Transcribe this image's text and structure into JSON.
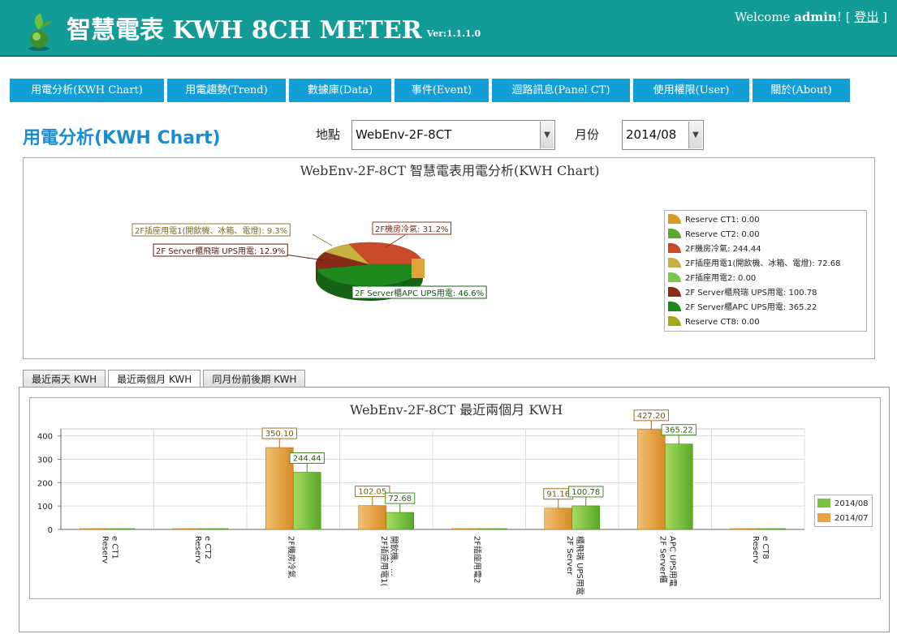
{
  "header": {
    "title": "智慧電表 KWH 8CH METER",
    "version": "Ver:1.1.1.0",
    "welcome_prefix": "Welcome",
    "user": "admin",
    "welcome_suffix": "! [",
    "logout": "登出",
    "welcome_end": "]"
  },
  "nav": [
    {
      "label": "用電分析(KWH Chart)",
      "width": 190
    },
    {
      "label": "用電趨勢(Trend)",
      "width": 146
    },
    {
      "label": "數據庫(Data)",
      "width": 126
    },
    {
      "label": "事件(Event)",
      "width": 116
    },
    {
      "label": "迴路訊息(Panel CT)",
      "width": 170
    },
    {
      "label": "使用權限(User)",
      "width": 143
    },
    {
      "label": "關於(About)",
      "width": 120
    }
  ],
  "page": {
    "title": "用電分析(KWH Chart)",
    "location_label": "地點",
    "location_value": "WebEnv-2F-8CT",
    "month_label": "月份",
    "month_value": "2014/08"
  },
  "colors": {
    "header": "#139b98",
    "nav": "#129fd8",
    "title": "#1a8ccf",
    "bar_2014_08": "#7cc040",
    "bar_2014_07": "#e8a53f"
  },
  "pie_legend": [
    {
      "label": "Reserve CT1: 0.00",
      "color": "#d89a2a"
    },
    {
      "label": "Reserve CT2: 0.00",
      "color": "#5aa830"
    },
    {
      "label": "2F機房冷氣: 244.44",
      "color": "#c84a28"
    },
    {
      "label": "2F插座用電1(開飲機、冰箱、電燈): 72.68",
      "color": "#c8b040"
    },
    {
      "label": "2F插座用電2: 0.00",
      "color": "#7ac84a"
    },
    {
      "label": "2F Server櫃飛瑞 UPS用電: 100.78",
      "color": "#8a2a18"
    },
    {
      "label": "2F Server櫃APC UPS用電: 365.22",
      "color": "#1e8a1e"
    },
    {
      "label": "Reserve CT8: 0.00",
      "color": "#a8a818"
    }
  ],
  "tabs": [
    {
      "label": "最近兩天 KWH",
      "active": false
    },
    {
      "label": "最近兩個月 KWH",
      "active": true
    },
    {
      "label": "同月份前後期 KWH",
      "active": false
    }
  ],
  "chart_data": [
    {
      "type": "pie",
      "title": "WebEnv-2F-8CT 智慧電表用電分析(KWH Chart)",
      "slices": [
        {
          "name": "2F Server櫃APC UPS用電",
          "value": 365.22,
          "percent_label": "2F Server櫃APC UPS用電: 46.6%",
          "color": "#1e8a1e"
        },
        {
          "name": "2F Server櫃飛瑞 UPS用電",
          "value": 100.78,
          "percent_label": "2F Server櫃飛瑞 UPS用電: 12.9%",
          "color": "#8a2a18"
        },
        {
          "name": "2F插座用電1(開飲機、冰箱、電燈)",
          "value": 72.68,
          "percent_label": "2F插座用電1(開飲機、冰箱、電燈): 9.3%",
          "color": "#c8b040"
        },
        {
          "name": "2F機房冷氣",
          "value": 244.44,
          "percent_label": "2F機房冷氣: 31.2%",
          "color": "#c84a28"
        }
      ],
      "legend_position": "right"
    },
    {
      "type": "bar",
      "title": "WebEnv-2F-8CT 最近兩個月 KWH",
      "categories": [
        "Reserve CT1",
        "Reserve CT2",
        "2F機房冷氣",
        "2F插座用電1(開飲機、...",
        "2F插座用電2",
        "2F Server櫃飛瑞 UPS用電",
        "2F Server櫃APC UPS用電",
        "Reserve CT8"
      ],
      "series": [
        {
          "name": "2014/07",
          "values": [
            0,
            0,
            350.1,
            102.05,
            0,
            91.16,
            427.2,
            0
          ],
          "labels": [
            "",
            "",
            "350.10",
            "102.05",
            "",
            "91.16",
            "427.20",
            ""
          ]
        },
        {
          "name": "2014/08",
          "values": [
            0,
            0,
            244.44,
            72.68,
            0,
            100.78,
            365.22,
            0
          ],
          "labels": [
            "",
            "",
            "244.44",
            "72.68",
            "",
            "100.78",
            "365.22",
            ""
          ]
        }
      ],
      "yticks": [
        0,
        100,
        200,
        300,
        400
      ],
      "ylim": [
        0,
        430
      ],
      "legend": [
        "2014/08",
        "2014/07"
      ],
      "legend_position": "right",
      "grid": true
    }
  ]
}
